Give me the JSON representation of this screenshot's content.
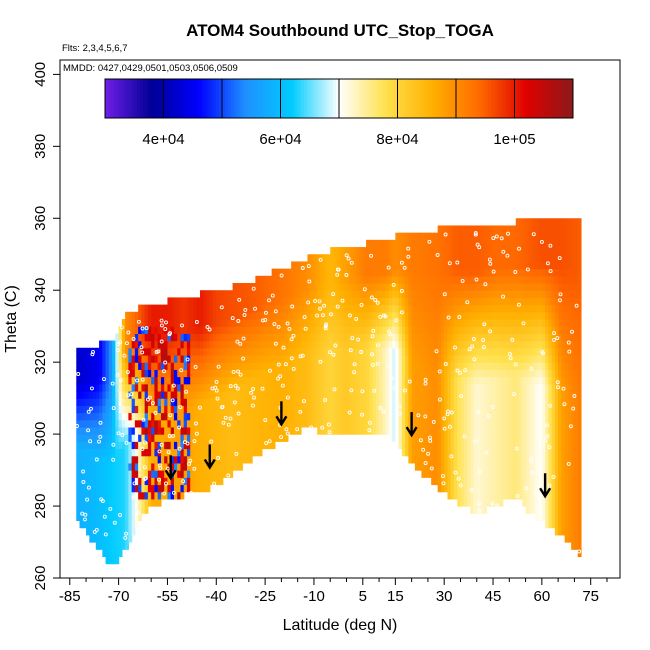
{
  "chart_data": {
    "type": "heatmap",
    "title": "ATOM4 Southbound UTC_Stop_TOGA",
    "flights_label": "Flts: 2,3,4,5,6,7",
    "dates_label": "MMDD: 0427,0429,0501,0503,0506,0509",
    "xlabel": "Latitude (deg N)",
    "ylabel": "Theta (C)",
    "xlim": [
      -88,
      84
    ],
    "ylim": [
      260,
      404
    ],
    "x_ticks": [
      -85,
      -70,
      -55,
      -40,
      -25,
      -10,
      5,
      15,
      30,
      45,
      60,
      75
    ],
    "x_tick_labels": [
      "-85",
      "-70",
      "-55",
      "-40",
      "-25",
      "-10",
      "5",
      "15",
      "30",
      "45",
      "60",
      "75"
    ],
    "y_ticks": [
      260,
      280,
      300,
      320,
      340,
      360,
      380,
      400
    ],
    "y_tick_labels": [
      "260",
      "280",
      "300",
      "320",
      "340",
      "360",
      "380",
      "400"
    ],
    "colorbar": {
      "range": [
        30000,
        110000
      ],
      "tick_values": [
        40000,
        60000,
        80000,
        100000
      ],
      "tick_labels": [
        "4e+04",
        "6e+04",
        "8e+04",
        "1e+05"
      ],
      "boundaries": [
        30000,
        40000,
        50000,
        60000,
        70000,
        80000,
        90000,
        100000,
        110000
      ],
      "colors": [
        "#6f1fe6",
        "#000096",
        "#0000ff",
        "#1f8fff",
        "#00ccff",
        "#ffffff",
        "#ffe14d",
        "#ffb000",
        "#ff6a00",
        "#e00000",
        "#8b1a1a"
      ]
    },
    "field": {
      "lat": [
        -83,
        -76,
        -72,
        -68,
        -64,
        -60,
        -55,
        -50,
        -45,
        -40,
        -35,
        -28,
        -20,
        -12,
        -5,
        0,
        6,
        12,
        15,
        20,
        28,
        34,
        40,
        46,
        52,
        56,
        60,
        66,
        72
      ],
      "top_theta": [
        322,
        324,
        325,
        333,
        334,
        335,
        336,
        337,
        338,
        339,
        340,
        342,
        345,
        348,
        350,
        351,
        352,
        353,
        354,
        355,
        356,
        357,
        357,
        358,
        358,
        359,
        360,
        360,
        358
      ],
      "bottom_theta": [
        276,
        268,
        263,
        268,
        276,
        280,
        282,
        283,
        284,
        286,
        289,
        294,
        298,
        302,
        300,
        301,
        301,
        300,
        298,
        292,
        285,
        281,
        278,
        280,
        283,
        278,
        276,
        272,
        266
      ],
      "upper_values": [
        42000,
        45000,
        55000,
        90000,
        95000,
        100000,
        100000,
        98000,
        100000,
        97000,
        96000,
        95000,
        93000,
        90000,
        85000,
        88000,
        92000,
        92000,
        90000,
        92000,
        93000,
        95000,
        95000,
        94000,
        94000,
        95000,
        96000,
        96000,
        95000
      ],
      "lower_values": [
        58000,
        60000,
        62000,
        63000,
        72000,
        86000,
        87000,
        88000,
        86000,
        85000,
        84000,
        85000,
        86000,
        84000,
        80000,
        82000,
        80000,
        73000,
        68000,
        88000,
        90000,
        78000,
        72000,
        74000,
        76000,
        73000,
        70000,
        88000,
        92000
      ]
    },
    "tropopause_arrows": [
      {
        "lat": -54,
        "theta": 288
      },
      {
        "lat": -42,
        "theta": 291
      },
      {
        "lat": -20,
        "theta": 303
      },
      {
        "lat": 20,
        "theta": 300
      },
      {
        "lat": 61,
        "theta": 283
      }
    ]
  }
}
